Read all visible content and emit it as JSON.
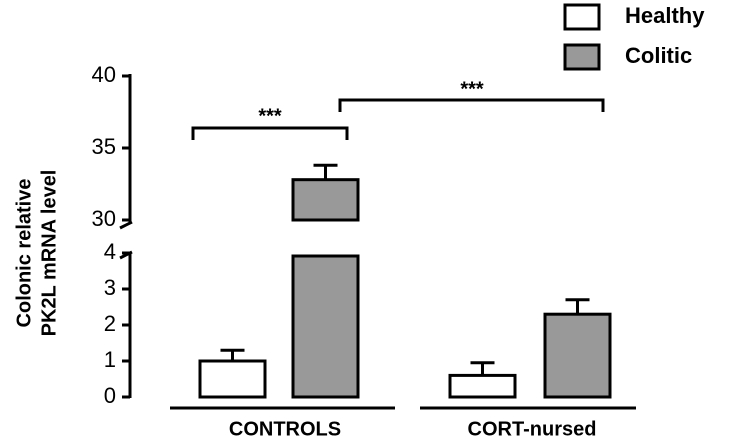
{
  "chart_data": {
    "type": "bar",
    "ylabel": [
      "Colonic relative",
      "PK2L mRNA level"
    ],
    "categories": [
      "CONTROLS",
      "CORT-nursed"
    ],
    "series": [
      {
        "name": "Healthy",
        "color": "#ffffff",
        "values": [
          1.0,
          0.6
        ],
        "errors": [
          0.3,
          0.35
        ]
      },
      {
        "name": "Colitic",
        "color": "#999999",
        "values": [
          32.8,
          2.3
        ],
        "errors": [
          1.0,
          0.4
        ]
      }
    ],
    "y_segments": [
      {
        "ylim": [
          0,
          4
        ],
        "yticks": [
          0,
          1,
          2,
          3,
          4
        ]
      },
      {
        "ylim": [
          30,
          40
        ],
        "yticks": [
          30,
          35,
          40
        ]
      }
    ],
    "annotations": [
      "***",
      "***"
    ],
    "legend": "top-right"
  }
}
